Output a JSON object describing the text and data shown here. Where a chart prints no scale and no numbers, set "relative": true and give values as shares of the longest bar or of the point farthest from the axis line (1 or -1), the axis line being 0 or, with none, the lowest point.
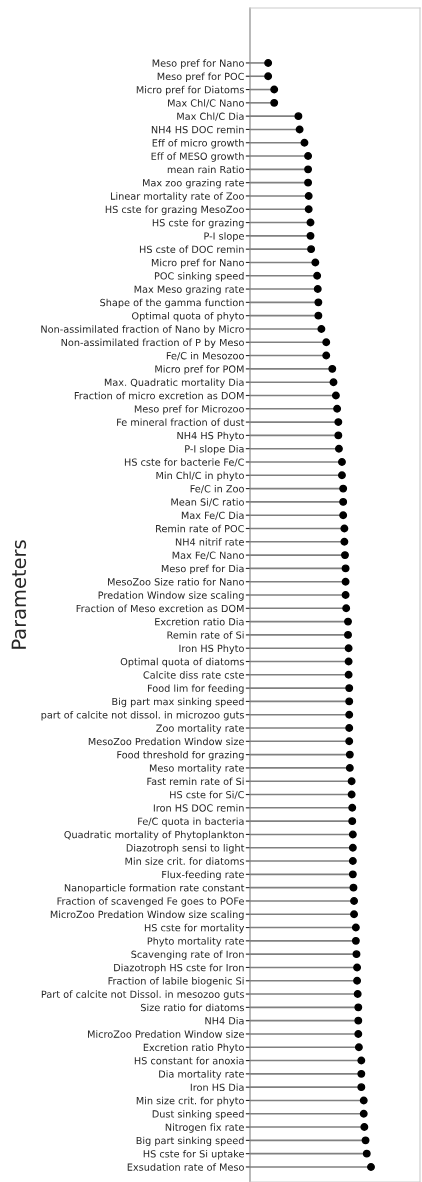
{
  "chart_data": {
    "type": "lollipop",
    "orientation": "horizontal",
    "relative": true,
    "ylabel": "Parameters",
    "color": "#000000",
    "tick_labels": "y",
    "categories": [
      "Meso pref for Nano",
      "Meso pref for POC",
      "Micro pref for Diatoms",
      "Max Chl/C Nano",
      "Max Chl/C Dia",
      "NH4 HS DOC remin",
      "Eff of micro growth",
      "Eff of MESO growth",
      "mean rain Ratio",
      "Max zoo grazing rate",
      "Linear mortality rate of Zoo",
      "HS cste for grazing MesoZoo",
      "HS cste for grazing",
      "P-I slope",
      "HS cste of DOC remin",
      "Micro pref for Nano",
      "POC sinking speed",
      "Max Meso grazing rate",
      "Shape of the gamma function",
      "Optimal quota of phyto",
      "Non-assimilated fraction of Nano by Micro",
      "Non-assimilated fraction of P by Meso",
      "Fe/C in Mesozoo",
      "Micro pref for POM",
      "Max. Quadratic mortality Dia",
      "Fraction of micro excretion as DOM",
      "Meso pref for Microzoo",
      "Fe mineral fraction of dust",
      "NH4 HS Phyto",
      "P-I slope Dia",
      "HS cste for bacterie Fe/C",
      "Min Chl/C in phyto",
      "Fe/C in Zoo",
      "Mean Si/C ratio",
      "Max Fe/C Dia",
      "Remin rate of POC",
      "NH4 nitrif rate",
      "Max Fe/C Nano",
      "Meso pref for Dia",
      "MesoZoo Size ratio for Nano",
      "Predation Window size scaling",
      "Fraction of Meso excretion as DOM",
      "Excretion ratio Dia",
      "Remin rate of Si",
      "Iron HS Phyto",
      "Optimal quota of diatoms",
      "Calcite diss rate cste",
      "Food lim for feeding",
      "Big part max sinking speed",
      "part of calcite not dissol. in microzoo guts",
      "Zoo mortality rate",
      "MesoZoo Predation Window size",
      "Food threshold for grazing",
      "Meso mortality rate",
      "Fast remin rate of Si",
      "HS cste for Si/C",
      "Iron HS DOC remin",
      "Fe/C quota in bacteria",
      "Quadratic mortality of Phytoplankton",
      "Diazotroph sensi to light",
      "Min size crit. for diatoms",
      "Flux-feeding rate",
      "Nanoparticle formation rate constant",
      "Fraction of scavenged Fe goes to POFe",
      "MicroZoo Predation Window size scaling",
      "HS cste for mortality",
      "Phyto mortality rate",
      "Scavenging rate of Iron",
      "Diazotroph HS cste for Iron",
      "Fraction of labile biogenic Si",
      "Part of calcite not Dissol. in mesozoo guts",
      "Size ratio for diatoms",
      "NH4 Dia",
      "MicroZoo Predation Window size",
      "Excretion ratio Phyto",
      "HS constant for anoxia",
      "Dia mortality rate",
      "Iron HS Dia",
      "Min size crit. for phyto",
      "Dust sinking speed",
      "Nitrogen fix rate",
      "Big part sinking speed",
      "HS cste for Si uptake",
      "Exsudation rate of Meso"
    ],
    "values": [
      0.15,
      0.15,
      0.2,
      0.2,
      0.4,
      0.41,
      0.45,
      0.48,
      0.48,
      0.48,
      0.485,
      0.485,
      0.5,
      0.5,
      0.505,
      0.54,
      0.555,
      0.56,
      0.565,
      0.565,
      0.59,
      0.63,
      0.63,
      0.68,
      0.69,
      0.71,
      0.72,
      0.73,
      0.73,
      0.735,
      0.76,
      0.76,
      0.77,
      0.77,
      0.77,
      0.78,
      0.78,
      0.785,
      0.79,
      0.79,
      0.79,
      0.795,
      0.81,
      0.81,
      0.815,
      0.815,
      0.815,
      0.82,
      0.82,
      0.82,
      0.82,
      0.82,
      0.825,
      0.825,
      0.84,
      0.84,
      0.845,
      0.845,
      0.85,
      0.85,
      0.85,
      0.85,
      0.855,
      0.86,
      0.86,
      0.875,
      0.875,
      0.88,
      0.885,
      0.885,
      0.89,
      0.895,
      0.895,
      0.895,
      0.9,
      0.92,
      0.92,
      0.92,
      0.94,
      0.94,
      0.945,
      0.955,
      0.965,
      1.0
    ]
  }
}
